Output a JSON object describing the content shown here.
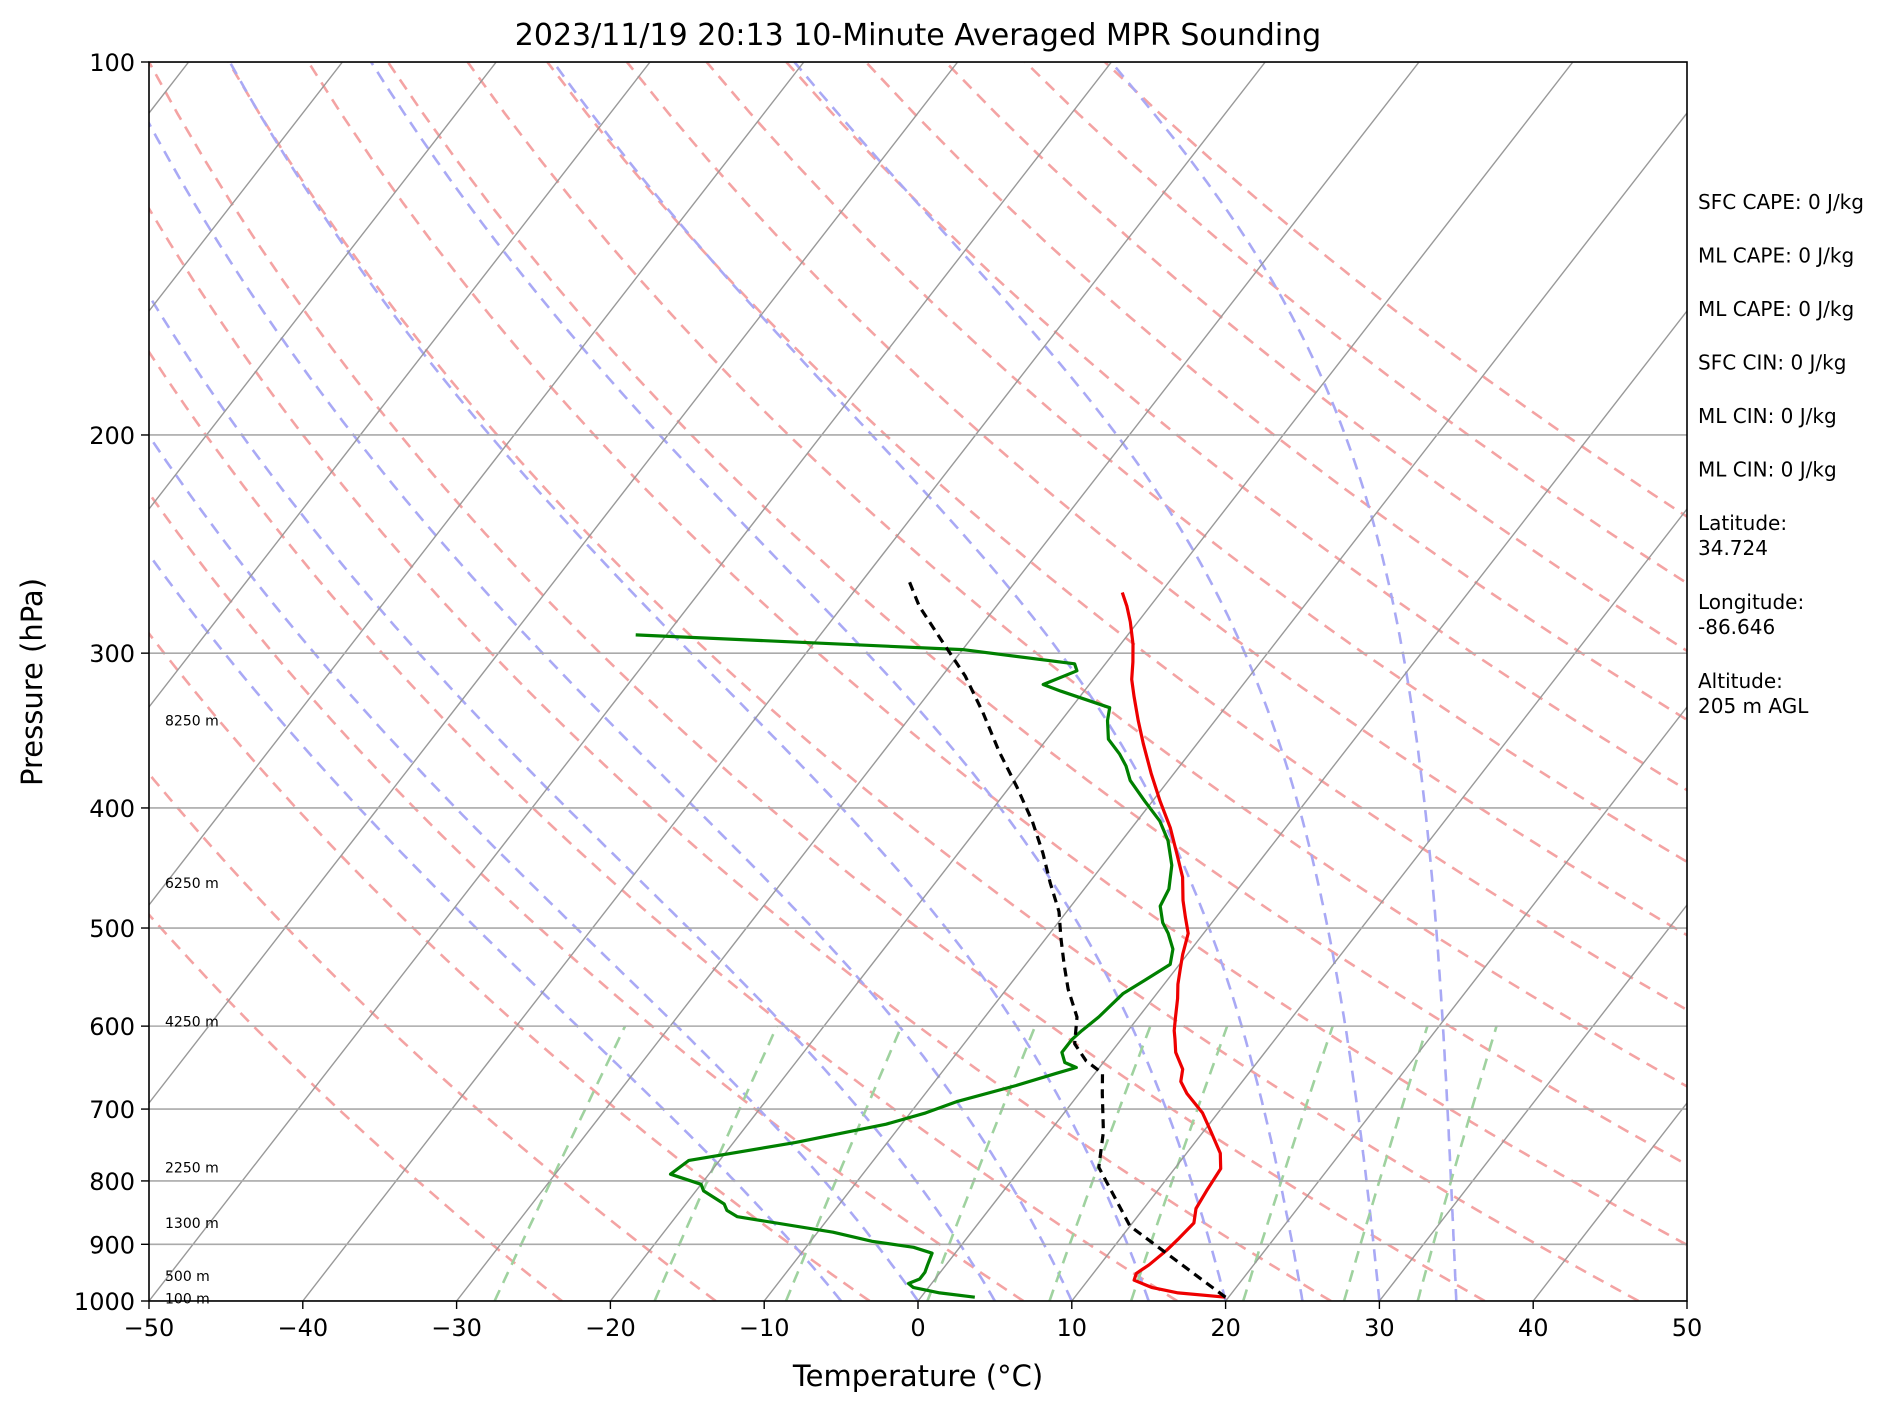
{
  "chart_data": {
    "type": "line",
    "title": "2023/11/19 20:13 10-Minute Averaged MPR Sounding",
    "xlabel": "Temperature (°C)",
    "ylabel": "Pressure (hPa)",
    "xlim": [
      -50,
      50
    ],
    "ylim": [
      1000,
      100
    ],
    "y_scale": "log",
    "skew": "skew-T log-p",
    "grid": true,
    "x_ticks": [
      -50,
      -40,
      -30,
      -20,
      -10,
      0,
      10,
      20,
      30,
      40,
      50
    ],
    "x_tick_labels": [
      "−50",
      "−40",
      "−30",
      "−20",
      "−10",
      "0",
      "10",
      "20",
      "30",
      "40",
      "50"
    ],
    "y_ticks": [
      1000,
      900,
      800,
      700,
      600,
      500,
      400,
      300,
      200,
      100
    ],
    "y_tick_labels": [
      "1000",
      "900",
      "800",
      "700",
      "600",
      "500",
      "400",
      "300",
      "200",
      "100"
    ],
    "height_labels": [
      {
        "pressure": 995,
        "text": "100 m"
      },
      {
        "pressure": 955,
        "text": "500 m"
      },
      {
        "pressure": 865,
        "text": "1300 m"
      },
      {
        "pressure": 780,
        "text": "2250 m"
      },
      {
        "pressure": 595,
        "text": "4250 m"
      },
      {
        "pressure": 460,
        "text": "6250 m"
      },
      {
        "pressure": 340,
        "text": "8250 m"
      }
    ],
    "dry_adiabats_theta_K": [
      250,
      260,
      270,
      280,
      290,
      300,
      310,
      320,
      330,
      340,
      350,
      360,
      370,
      380,
      390,
      400,
      410,
      420,
      430
    ],
    "moist_adiabats_start_C": [
      -5,
      0,
      5,
      10,
      15,
      20,
      25,
      30,
      35
    ],
    "mixing_ratio_lines_gkg": [
      0.4,
      1,
      2,
      4,
      7,
      10,
      16,
      24,
      32
    ],
    "colors": {
      "temperature": "#ee0000",
      "dewpoint": "#008000",
      "parcel": "#000000",
      "isotherm": "#999999",
      "dry_adiabat": "#f4a3a3",
      "moist_adiabat": "#a9a9f5",
      "mixing_ratio": "#9fd29f",
      "grid": "#aaaaaa"
    },
    "series": [
      {
        "name": "Temperature",
        "points": [
          [
            19.8,
            993
          ],
          [
            16.5,
            985
          ],
          [
            14.5,
            975
          ],
          [
            13.0,
            962
          ],
          [
            12.8,
            950
          ],
          [
            13.2,
            935
          ],
          [
            13.6,
            910
          ],
          [
            13.8,
            890
          ],
          [
            14.0,
            865
          ],
          [
            13.4,
            842
          ],
          [
            13.2,
            815
          ],
          [
            13.0,
            782
          ],
          [
            12.2,
            760
          ],
          [
            10.5,
            730
          ],
          [
            9.0,
            705
          ],
          [
            7.0,
            680
          ],
          [
            6.0,
            665
          ],
          [
            5.5,
            650
          ],
          [
            4.2,
            630
          ],
          [
            3.5,
            615
          ],
          [
            3.0,
            605
          ],
          [
            2.4,
            590
          ],
          [
            1.6,
            570
          ],
          [
            0.9,
            555
          ],
          [
            0.3,
            540
          ],
          [
            -0.3,
            525
          ],
          [
            -1.0,
            505
          ],
          [
            -2.0,
            490
          ],
          [
            -3.0,
            475
          ],
          [
            -4.2,
            455
          ],
          [
            -5.8,
            435
          ],
          [
            -7.5,
            415
          ],
          [
            -9.5,
            395
          ],
          [
            -11.5,
            375
          ],
          [
            -13.5,
            355
          ],
          [
            -15.0,
            340
          ],
          [
            -16.5,
            325
          ],
          [
            -17.5,
            315
          ],
          [
            -18.3,
            305
          ],
          [
            -19.2,
            295
          ],
          [
            -20.5,
            283
          ],
          [
            -21.5,
            275
          ],
          [
            -22.5,
            268
          ]
        ]
      },
      {
        "name": "Dewpoint",
        "points": [
          [
            3.5,
            993
          ],
          [
            1.0,
            985
          ],
          [
            -1.0,
            975
          ],
          [
            -1.5,
            968
          ],
          [
            -1.0,
            960
          ],
          [
            -1.0,
            948
          ],
          [
            -1.2,
            935
          ],
          [
            -1.5,
            915
          ],
          [
            -3.0,
            905
          ],
          [
            -6.0,
            895
          ],
          [
            -9.0,
            880
          ],
          [
            -16.0,
            855
          ],
          [
            -17.0,
            845
          ],
          [
            -17.5,
            835
          ],
          [
            -19.5,
            815
          ],
          [
            -20.0,
            805
          ],
          [
            -22.5,
            790
          ],
          [
            -22.0,
            770
          ],
          [
            -16.0,
            745
          ],
          [
            -11.0,
            720
          ],
          [
            -9.0,
            705
          ],
          [
            -7.5,
            690
          ],
          [
            -4.5,
            670
          ],
          [
            -2.5,
            655
          ],
          [
            -1.5,
            648
          ],
          [
            -2.5,
            642
          ],
          [
            -3.2,
            630
          ],
          [
            -3.2,
            615
          ],
          [
            -3.0,
            605
          ],
          [
            -2.6,
            590
          ],
          [
            -2.2,
            565
          ],
          [
            -1.4,
            550
          ],
          [
            -0.6,
            535
          ],
          [
            -1.2,
            520
          ],
          [
            -2.3,
            505
          ],
          [
            -3.2,
            495
          ],
          [
            -4.2,
            480
          ],
          [
            -4.5,
            465
          ],
          [
            -5.5,
            445
          ],
          [
            -7.0,
            425
          ],
          [
            -8.5,
            410
          ],
          [
            -10.5,
            395
          ],
          [
            -12.5,
            380
          ],
          [
            -13.5,
            370
          ],
          [
            -14.5,
            362
          ],
          [
            -16.0,
            352
          ],
          [
            -17.0,
            340
          ],
          [
            -17.5,
            332
          ],
          [
            -21.5,
            322
          ],
          [
            -23.0,
            318
          ],
          [
            -21.5,
            310
          ],
          [
            -22.0,
            306
          ],
          [
            -30.0,
            298
          ],
          [
            -52.0,
            290
          ]
        ]
      },
      {
        "name": "Parcel",
        "points": [
          [
            19.8,
            993
          ],
          [
            10.0,
            870
          ],
          [
            5.0,
            780
          ],
          [
            3.5,
            730
          ],
          [
            1.5,
            680
          ],
          [
            0.5,
            655
          ],
          [
            -1.2,
            640
          ],
          [
            -2.8,
            620
          ],
          [
            -3.2,
            610
          ],
          [
            -4.0,
            590
          ],
          [
            -6.0,
            560
          ],
          [
            -7.5,
            535
          ],
          [
            -9.0,
            510
          ],
          [
            -10.5,
            485
          ],
          [
            -12.5,
            460
          ],
          [
            -14.5,
            435
          ],
          [
            -16.8,
            410
          ],
          [
            -19.5,
            385
          ],
          [
            -22.5,
            360
          ],
          [
            -25.5,
            335
          ],
          [
            -28.5,
            313
          ],
          [
            -32.0,
            292
          ],
          [
            -35.0,
            275
          ],
          [
            -37.0,
            262
          ]
        ]
      }
    ],
    "annotations": [
      {
        "id": "sfc_cape",
        "text": "SFC CAPE: 0 J/kg"
      },
      {
        "id": "ml_cape",
        "text": "ML CAPE: 0 J/kg"
      },
      {
        "id": "ml_cape_2",
        "text": "ML CAPE: 0 J/kg"
      },
      {
        "id": "sfc_cin",
        "text": "SFC CIN: 0 J/kg"
      },
      {
        "id": "ml_cin",
        "text": "ML CIN: 0 J/kg"
      },
      {
        "id": "ml_cin_2",
        "text": "ML CIN: 0 J/kg"
      },
      {
        "id": "latitude",
        "label": "Latitude:",
        "value": "34.724"
      },
      {
        "id": "longitude",
        "label": "Longitude:",
        "value": "-86.646"
      },
      {
        "id": "altitude",
        "label": "Altitude:",
        "value": "205 m AGL"
      }
    ]
  }
}
